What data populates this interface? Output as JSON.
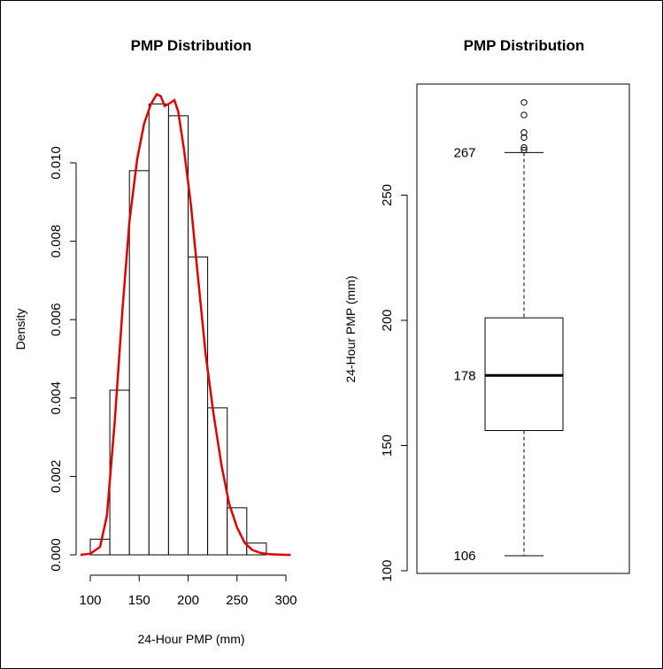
{
  "chart_data": [
    {
      "type": "bar",
      "subtype": "histogram",
      "title": "PMP Distribution",
      "xlabel": "24-Hour PMP (mm)",
      "ylabel": "Density",
      "xlim": [
        90,
        305
      ],
      "ylim": [
        0,
        0.0117
      ],
      "x_ticks": [
        "100",
        "150",
        "200",
        "250",
        "300"
      ],
      "y_ticks": [
        "0.000",
        "0.002",
        "0.004",
        "0.006",
        "0.008",
        "0.010"
      ],
      "bin_width": 20,
      "bins": [
        {
          "start": 100,
          "end": 120,
          "density": 0.0004
        },
        {
          "start": 120,
          "end": 140,
          "density": 0.0042
        },
        {
          "start": 140,
          "end": 160,
          "density": 0.0098
        },
        {
          "start": 160,
          "end": 180,
          "density": 0.0115
        },
        {
          "start": 180,
          "end": 200,
          "density": 0.0112
        },
        {
          "start": 200,
          "end": 220,
          "density": 0.0076
        },
        {
          "start": 220,
          "end": 240,
          "density": 0.00375
        },
        {
          "start": 240,
          "end": 260,
          "density": 0.0012
        },
        {
          "start": 260,
          "end": 280,
          "density": 0.0003
        }
      ],
      "density_curve": {
        "color": "#e00000",
        "x": [
          90,
          100,
          110,
          117,
          125,
          133,
          140,
          148,
          155,
          162,
          168,
          172,
          176,
          180,
          186,
          190,
          196,
          203,
          210,
          218,
          226,
          234,
          242,
          250,
          258,
          266,
          274,
          282,
          290,
          300,
          305
        ],
        "y": [
          0.0,
          3e-05,
          0.0002,
          0.001,
          0.0034,
          0.0063,
          0.0085,
          0.0101,
          0.011,
          0.0115,
          0.01175,
          0.0117,
          0.01145,
          0.0115,
          0.0116,
          0.0113,
          0.0103,
          0.0089,
          0.0071,
          0.0051,
          0.0036,
          0.0023,
          0.0013,
          0.0007,
          0.0003,
          0.00012,
          5e-05,
          2e-05,
          1e-05,
          0.0,
          0.0
        ]
      }
    },
    {
      "type": "box",
      "title": "PMP Distribution",
      "ylabel": "24-Hour PMP (mm)",
      "ylim": [
        98,
        295
      ],
      "y_ticks": [
        "100",
        "150",
        "200",
        "250"
      ],
      "stats": {
        "min": 106,
        "q1": 156,
        "median": 178,
        "q3": 201,
        "whisker_high": 267
      },
      "outliers": [
        268,
        269,
        273,
        275,
        282,
        287
      ],
      "annotations": [
        "267",
        "178",
        "106"
      ]
    }
  ]
}
